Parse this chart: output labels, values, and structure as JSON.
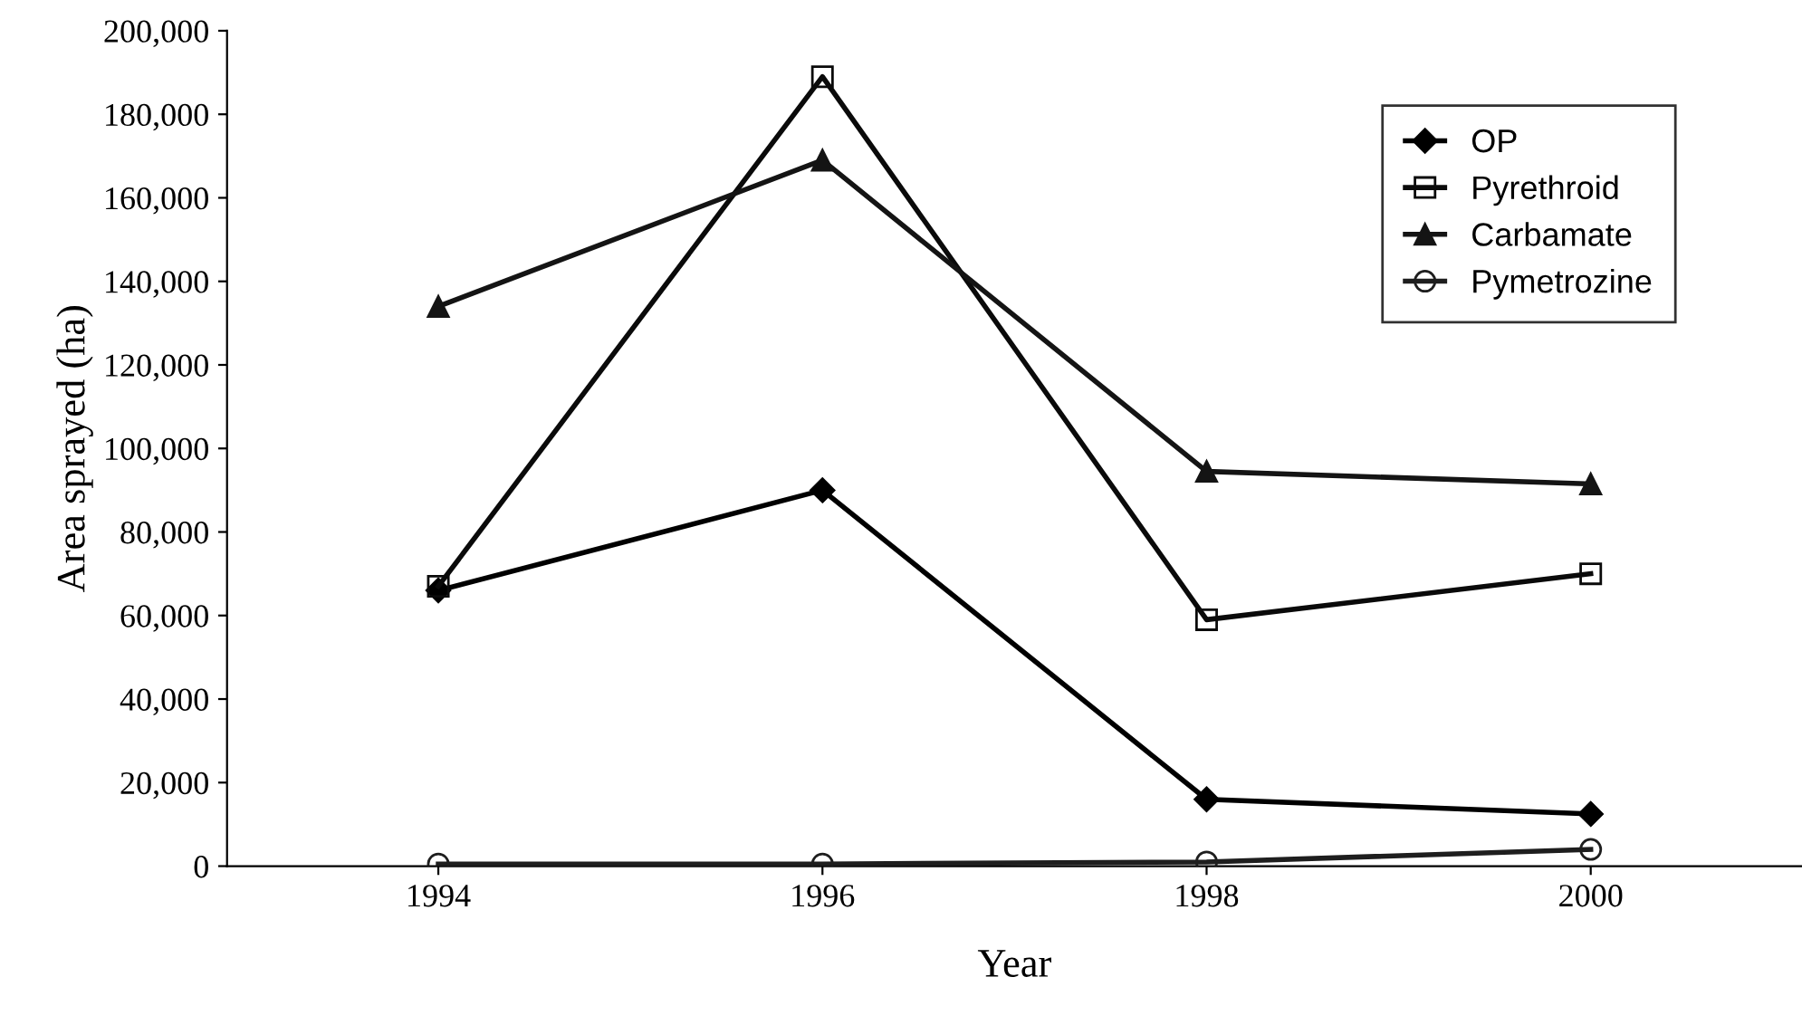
{
  "chart_data": {
    "type": "line",
    "xlabel": "Year",
    "ylabel": "Area sprayed (ha)",
    "categories": [
      "1994",
      "1996",
      "1998",
      "2000"
    ],
    "series": [
      {
        "name": "OP",
        "color": "#000000",
        "marker": "diamond",
        "values": [
          66000,
          90000,
          16000,
          12500
        ]
      },
      {
        "name": "Pyrethroid",
        "color": "#0a0a0a",
        "marker": "square",
        "values": [
          67000,
          189000,
          59000,
          70000
        ]
      },
      {
        "name": "Carbamate",
        "color": "#141414",
        "marker": "triangle",
        "values": [
          134000,
          169000,
          94500,
          91500
        ]
      },
      {
        "name": "Pymetrozine",
        "color": "#1e1e1e",
        "marker": "circle",
        "values": [
          500,
          500,
          1000,
          4000
        ]
      }
    ],
    "ylim": [
      0,
      200000
    ],
    "yticks": [
      {
        "value": 0,
        "label": "0"
      },
      {
        "value": 20000,
        "label": "20,000"
      },
      {
        "value": 40000,
        "label": "40,000"
      },
      {
        "value": 60000,
        "label": "60,000"
      },
      {
        "value": 80000,
        "label": "80,000"
      },
      {
        "value": 100000,
        "label": "100,000"
      },
      {
        "value": 120000,
        "label": "120,000"
      },
      {
        "value": 140000,
        "label": "140,000"
      },
      {
        "value": 160000,
        "label": "160,000"
      },
      {
        "value": 180000,
        "label": "180,000"
      },
      {
        "value": 200000,
        "label": "200,000"
      }
    ],
    "grid": false,
    "legend": "top right",
    "line_style": "solid"
  }
}
